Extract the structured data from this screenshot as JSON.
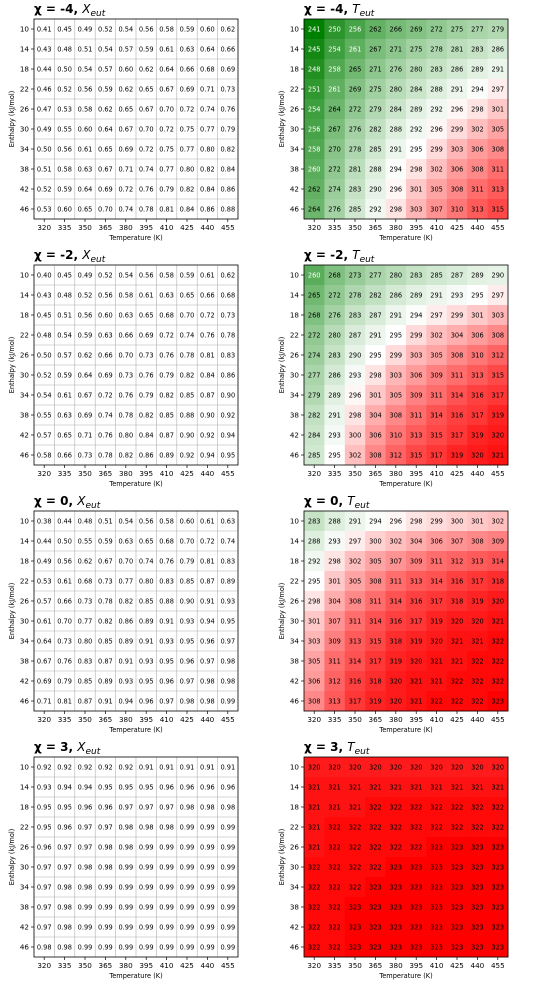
{
  "figure": {
    "xlabel": "Temperature (K)",
    "ylabel": "Enthalpy (kJ/mol)",
    "xticks": [
      "320",
      "335",
      "350",
      "365",
      "380",
      "395",
      "410",
      "425",
      "440",
      "455"
    ],
    "yticks": [
      "10",
      "14",
      "18",
      "22",
      "26",
      "30",
      "34",
      "38",
      "42",
      "46"
    ]
  },
  "chart_data": [
    {
      "type": "table",
      "title_prefix": "χ = -4,",
      "title_var": "X",
      "title_sub": "eut",
      "colormap": "none",
      "decimals": 2,
      "categories_x": [
        "320",
        "335",
        "350",
        "365",
        "380",
        "395",
        "410",
        "425",
        "440",
        "455"
      ],
      "categories_y": [
        "10",
        "14",
        "18",
        "22",
        "26",
        "30",
        "34",
        "38",
        "42",
        "46"
      ],
      "values": [
        [
          0.41,
          0.45,
          0.49,
          0.52,
          0.54,
          0.56,
          0.58,
          0.59,
          0.6,
          0.62
        ],
        [
          0.43,
          0.48,
          0.51,
          0.54,
          0.57,
          0.59,
          0.61,
          0.63,
          0.64,
          0.66
        ],
        [
          0.44,
          0.5,
          0.54,
          0.57,
          0.6,
          0.62,
          0.64,
          0.66,
          0.68,
          0.69
        ],
        [
          0.46,
          0.52,
          0.56,
          0.59,
          0.62,
          0.65,
          0.67,
          0.69,
          0.71,
          0.73
        ],
        [
          0.47,
          0.53,
          0.58,
          0.62,
          0.65,
          0.67,
          0.7,
          0.72,
          0.74,
          0.76
        ],
        [
          0.49,
          0.55,
          0.6,
          0.64,
          0.67,
          0.7,
          0.72,
          0.75,
          0.77,
          0.79
        ],
        [
          0.5,
          0.56,
          0.61,
          0.65,
          0.69,
          0.72,
          0.75,
          0.77,
          0.8,
          0.82
        ],
        [
          0.51,
          0.58,
          0.63,
          0.67,
          0.71,
          0.74,
          0.77,
          0.8,
          0.82,
          0.84
        ],
        [
          0.52,
          0.59,
          0.64,
          0.69,
          0.72,
          0.76,
          0.79,
          0.82,
          0.84,
          0.86
        ],
        [
          0.53,
          0.6,
          0.65,
          0.7,
          0.74,
          0.78,
          0.81,
          0.84,
          0.86,
          0.88
        ]
      ]
    },
    {
      "type": "heatmap",
      "title_prefix": "χ = -4,",
      "title_var": "T",
      "title_sub": "eut",
      "colormap": "green-white-red",
      "center": 295,
      "vmin": 241,
      "vmax": 323,
      "decimals": 0,
      "categories_x": [
        "320",
        "335",
        "350",
        "365",
        "380",
        "395",
        "410",
        "425",
        "440",
        "455"
      ],
      "categories_y": [
        "10",
        "14",
        "18",
        "22",
        "26",
        "30",
        "34",
        "38",
        "42",
        "46"
      ],
      "values": [
        [
          241,
          250,
          256,
          262,
          266,
          269,
          272,
          275,
          277,
          279
        ],
        [
          245,
          254,
          261,
          267,
          271,
          275,
          278,
          281,
          283,
          286
        ],
        [
          248,
          258,
          265,
          271,
          276,
          280,
          283,
          286,
          289,
          291
        ],
        [
          251,
          261,
          269,
          275,
          280,
          284,
          288,
          291,
          294,
          297
        ],
        [
          254,
          264,
          272,
          279,
          284,
          289,
          292,
          296,
          298,
          301
        ],
        [
          256,
          267,
          276,
          282,
          288,
          292,
          296,
          299,
          302,
          305
        ],
        [
          258,
          270,
          278,
          285,
          291,
          295,
          299,
          303,
          306,
          308
        ],
        [
          260,
          272,
          281,
          288,
          294,
          298,
          302,
          306,
          308,
          311
        ],
        [
          262,
          274,
          283,
          290,
          296,
          301,
          305,
          308,
          311,
          313
        ],
        [
          264,
          276,
          285,
          292,
          298,
          303,
          307,
          310,
          313,
          315
        ]
      ]
    },
    {
      "type": "table",
      "title_prefix": "χ = -2,",
      "title_var": "X",
      "title_sub": "eut",
      "colormap": "none",
      "decimals": 2,
      "categories_x": [
        "320",
        "335",
        "350",
        "365",
        "380",
        "395",
        "410",
        "425",
        "440",
        "455"
      ],
      "categories_y": [
        "10",
        "14",
        "18",
        "22",
        "26",
        "30",
        "34",
        "38",
        "42",
        "46"
      ],
      "values": [
        [
          0.4,
          0.45,
          0.49,
          0.52,
          0.54,
          0.56,
          0.58,
          0.59,
          0.61,
          0.62
        ],
        [
          0.43,
          0.48,
          0.52,
          0.56,
          0.58,
          0.61,
          0.63,
          0.65,
          0.66,
          0.68
        ],
        [
          0.45,
          0.51,
          0.56,
          0.6,
          0.63,
          0.65,
          0.68,
          0.7,
          0.72,
          0.73
        ],
        [
          0.48,
          0.54,
          0.59,
          0.63,
          0.66,
          0.69,
          0.72,
          0.74,
          0.76,
          0.78
        ],
        [
          0.5,
          0.57,
          0.62,
          0.66,
          0.7,
          0.73,
          0.76,
          0.78,
          0.81,
          0.83
        ],
        [
          0.52,
          0.59,
          0.64,
          0.69,
          0.73,
          0.76,
          0.79,
          0.82,
          0.84,
          0.86
        ],
        [
          0.54,
          0.61,
          0.67,
          0.72,
          0.76,
          0.79,
          0.82,
          0.85,
          0.87,
          0.9
        ],
        [
          0.55,
          0.63,
          0.69,
          0.74,
          0.78,
          0.82,
          0.85,
          0.88,
          0.9,
          0.92
        ],
        [
          0.57,
          0.65,
          0.71,
          0.76,
          0.8,
          0.84,
          0.87,
          0.9,
          0.92,
          0.94
        ],
        [
          0.58,
          0.66,
          0.73,
          0.78,
          0.82,
          0.86,
          0.89,
          0.92,
          0.94,
          0.95
        ]
      ]
    },
    {
      "type": "heatmap",
      "title_prefix": "χ = -2,",
      "title_var": "T",
      "title_sub": "eut",
      "colormap": "green-white-red",
      "center": 295,
      "vmin": 241,
      "vmax": 323,
      "decimals": 0,
      "categories_x": [
        "320",
        "335",
        "350",
        "365",
        "380",
        "395",
        "410",
        "425",
        "440",
        "455"
      ],
      "categories_y": [
        "10",
        "14",
        "18",
        "22",
        "26",
        "30",
        "34",
        "38",
        "42",
        "46"
      ],
      "values": [
        [
          260,
          268,
          273,
          277,
          280,
          283,
          285,
          287,
          289,
          290
        ],
        [
          265,
          272,
          278,
          282,
          286,
          289,
          291,
          293,
          295,
          297
        ],
        [
          268,
          276,
          283,
          287,
          291,
          294,
          297,
          299,
          301,
          303
        ],
        [
          272,
          280,
          287,
          291,
          295,
          299,
          302,
          304,
          306,
          308
        ],
        [
          274,
          283,
          290,
          295,
          299,
          303,
          305,
          308,
          310,
          312
        ],
        [
          277,
          286,
          293,
          298,
          303,
          306,
          309,
          311,
          313,
          315
        ],
        [
          279,
          289,
          296,
          301,
          305,
          309,
          311,
          314,
          316,
          317
        ],
        [
          282,
          291,
          298,
          304,
          308,
          311,
          314,
          316,
          317,
          319
        ],
        [
          284,
          293,
          300,
          306,
          310,
          313,
          315,
          317,
          319,
          320
        ],
        [
          285,
          295,
          302,
          308,
          312,
          315,
          317,
          319,
          320,
          321
        ]
      ]
    },
    {
      "type": "table",
      "title_prefix": "χ = 0,",
      "title_var": "X",
      "title_sub": "eut",
      "colormap": "none",
      "decimals": 2,
      "categories_x": [
        "320",
        "335",
        "350",
        "365",
        "380",
        "395",
        "410",
        "425",
        "440",
        "455"
      ],
      "categories_y": [
        "10",
        "14",
        "18",
        "22",
        "26",
        "30",
        "34",
        "38",
        "42",
        "46"
      ],
      "values": [
        [
          0.38,
          0.44,
          0.48,
          0.51,
          0.54,
          0.56,
          0.58,
          0.6,
          0.61,
          0.63
        ],
        [
          0.44,
          0.5,
          0.55,
          0.59,
          0.63,
          0.65,
          0.68,
          0.7,
          0.72,
          0.74
        ],
        [
          0.49,
          0.56,
          0.62,
          0.67,
          0.7,
          0.74,
          0.76,
          0.79,
          0.81,
          0.83
        ],
        [
          0.53,
          0.61,
          0.68,
          0.73,
          0.77,
          0.8,
          0.83,
          0.85,
          0.87,
          0.89
        ],
        [
          0.57,
          0.66,
          0.73,
          0.78,
          0.82,
          0.85,
          0.88,
          0.9,
          0.91,
          0.93
        ],
        [
          0.61,
          0.7,
          0.77,
          0.82,
          0.86,
          0.89,
          0.91,
          0.93,
          0.94,
          0.95
        ],
        [
          0.64,
          0.73,
          0.8,
          0.85,
          0.89,
          0.91,
          0.93,
          0.95,
          0.96,
          0.97
        ],
        [
          0.67,
          0.76,
          0.83,
          0.87,
          0.91,
          0.93,
          0.95,
          0.96,
          0.97,
          0.98
        ],
        [
          0.69,
          0.79,
          0.85,
          0.89,
          0.93,
          0.95,
          0.96,
          0.97,
          0.98,
          0.98
        ],
        [
          0.71,
          0.81,
          0.87,
          0.91,
          0.94,
          0.96,
          0.97,
          0.98,
          0.98,
          0.99
        ]
      ]
    },
    {
      "type": "heatmap",
      "title_prefix": "χ = 0,",
      "title_var": "T",
      "title_sub": "eut",
      "colormap": "green-white-red",
      "center": 295,
      "vmin": 241,
      "vmax": 323,
      "decimals": 0,
      "categories_x": [
        "320",
        "335",
        "350",
        "365",
        "380",
        "395",
        "410",
        "425",
        "440",
        "455"
      ],
      "categories_y": [
        "10",
        "14",
        "18",
        "22",
        "26",
        "30",
        "34",
        "38",
        "42",
        "46"
      ],
      "values": [
        [
          283,
          288,
          291,
          294,
          296,
          298,
          299,
          300,
          301,
          302
        ],
        [
          288,
          293,
          297,
          300,
          302,
          304,
          306,
          307,
          308,
          309
        ],
        [
          292,
          298,
          302,
          305,
          307,
          309,
          311,
          312,
          313,
          314
        ],
        [
          295,
          301,
          305,
          308,
          311,
          313,
          314,
          316,
          317,
          318
        ],
        [
          298,
          304,
          308,
          311,
          314,
          316,
          317,
          318,
          319,
          320
        ],
        [
          301,
          307,
          311,
          314,
          316,
          317,
          319,
          320,
          320,
          321
        ],
        [
          303,
          309,
          313,
          315,
          318,
          319,
          320,
          321,
          321,
          322
        ],
        [
          305,
          311,
          314,
          317,
          319,
          320,
          321,
          321,
          322,
          322
        ],
        [
          306,
          312,
          316,
          318,
          320,
          321,
          321,
          322,
          322,
          322
        ],
        [
          308,
          313,
          317,
          319,
          320,
          321,
          322,
          322,
          322,
          323
        ]
      ]
    },
    {
      "type": "table",
      "title_prefix": "χ = 3,",
      "title_var": "X",
      "title_sub": "eut",
      "colormap": "none",
      "decimals": 2,
      "categories_x": [
        "320",
        "335",
        "350",
        "365",
        "380",
        "395",
        "410",
        "425",
        "440",
        "455"
      ],
      "categories_y": [
        "10",
        "14",
        "18",
        "22",
        "26",
        "30",
        "34",
        "38",
        "42",
        "46"
      ],
      "values": [
        [
          0.92,
          0.92,
          0.92,
          0.92,
          0.92,
          0.91,
          0.91,
          0.91,
          0.91,
          0.91
        ],
        [
          0.93,
          0.94,
          0.94,
          0.95,
          0.95,
          0.95,
          0.96,
          0.96,
          0.96,
          0.96
        ],
        [
          0.95,
          0.95,
          0.96,
          0.96,
          0.97,
          0.97,
          0.97,
          0.98,
          0.98,
          0.98
        ],
        [
          0.95,
          0.96,
          0.97,
          0.97,
          0.98,
          0.98,
          0.98,
          0.99,
          0.99,
          0.99
        ],
        [
          0.96,
          0.97,
          0.97,
          0.98,
          0.98,
          0.99,
          0.99,
          0.99,
          0.99,
          0.99
        ],
        [
          0.97,
          0.97,
          0.98,
          0.98,
          0.99,
          0.99,
          0.99,
          0.99,
          0.99,
          0.99
        ],
        [
          0.97,
          0.98,
          0.98,
          0.99,
          0.99,
          0.99,
          0.99,
          0.99,
          0.99,
          0.99
        ],
        [
          0.97,
          0.98,
          0.99,
          0.99,
          0.99,
          0.99,
          0.99,
          0.99,
          0.99,
          0.99
        ],
        [
          0.97,
          0.98,
          0.99,
          0.99,
          0.99,
          0.99,
          0.99,
          0.99,
          0.99,
          0.99
        ],
        [
          0.98,
          0.98,
          0.99,
          0.99,
          0.99,
          0.99,
          0.99,
          0.99,
          0.99,
          0.99
        ]
      ]
    },
    {
      "type": "heatmap",
      "title_prefix": "χ = 3,",
      "title_var": "T",
      "title_sub": "eut",
      "colormap": "green-white-red",
      "center": 295,
      "vmin": 241,
      "vmax": 323,
      "decimals": 0,
      "categories_x": [
        "320",
        "335",
        "350",
        "365",
        "380",
        "395",
        "410",
        "425",
        "440",
        "455"
      ],
      "categories_y": [
        "10",
        "14",
        "18",
        "22",
        "26",
        "30",
        "34",
        "38",
        "42",
        "46"
      ],
      "values": [
        [
          320,
          320,
          320,
          320,
          320,
          320,
          320,
          320,
          320,
          320
        ],
        [
          321,
          321,
          321,
          321,
          321,
          321,
          321,
          321,
          321,
          321
        ],
        [
          321,
          321,
          321,
          322,
          322,
          322,
          322,
          322,
          322,
          322
        ],
        [
          321,
          322,
          322,
          322,
          322,
          322,
          322,
          322,
          322,
          322
        ],
        [
          321,
          322,
          322,
          322,
          322,
          322,
          323,
          323,
          323,
          323
        ],
        [
          322,
          322,
          322,
          322,
          323,
          323,
          323,
          323,
          323,
          323
        ],
        [
          322,
          322,
          322,
          323,
          323,
          323,
          323,
          323,
          323,
          323
        ],
        [
          322,
          322,
          323,
          323,
          323,
          323,
          323,
          323,
          323,
          323
        ],
        [
          322,
          322,
          323,
          323,
          323,
          323,
          323,
          323,
          323,
          323
        ],
        [
          322,
          322,
          323,
          323,
          323,
          323,
          323,
          323,
          323,
          323
        ]
      ]
    }
  ]
}
